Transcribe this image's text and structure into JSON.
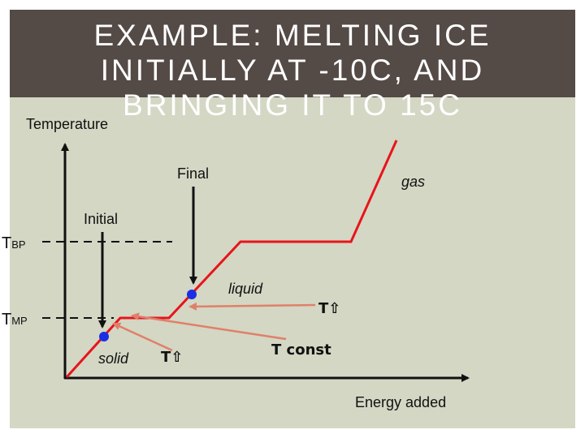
{
  "slide": {
    "title": "EXAMPLE: MELTING ICE INITIALLY AT -10C, AND BRINGING IT TO 15C",
    "colors": {
      "title_bar": "#544a46",
      "panel": "#d3d7c4",
      "curve": "#e8141c",
      "points": "#1a2ee6",
      "arrows": "#e0806a"
    }
  },
  "diagram": {
    "y_axis_label": "Temperature",
    "x_axis_label": "Energy added",
    "boiling_point": {
      "main": "T",
      "sub": "BP"
    },
    "melting_point": {
      "main": "T",
      "sub": "MP"
    },
    "phases": {
      "solid": "solid",
      "liquid": "liquid",
      "gas": "gas"
    },
    "markers": {
      "initial": "Initial",
      "final": "Final"
    },
    "notes": {
      "temp_rise_liquid": "T⇧",
      "temp_rise_solid": "T⇧",
      "temp_const": "T const"
    }
  }
}
